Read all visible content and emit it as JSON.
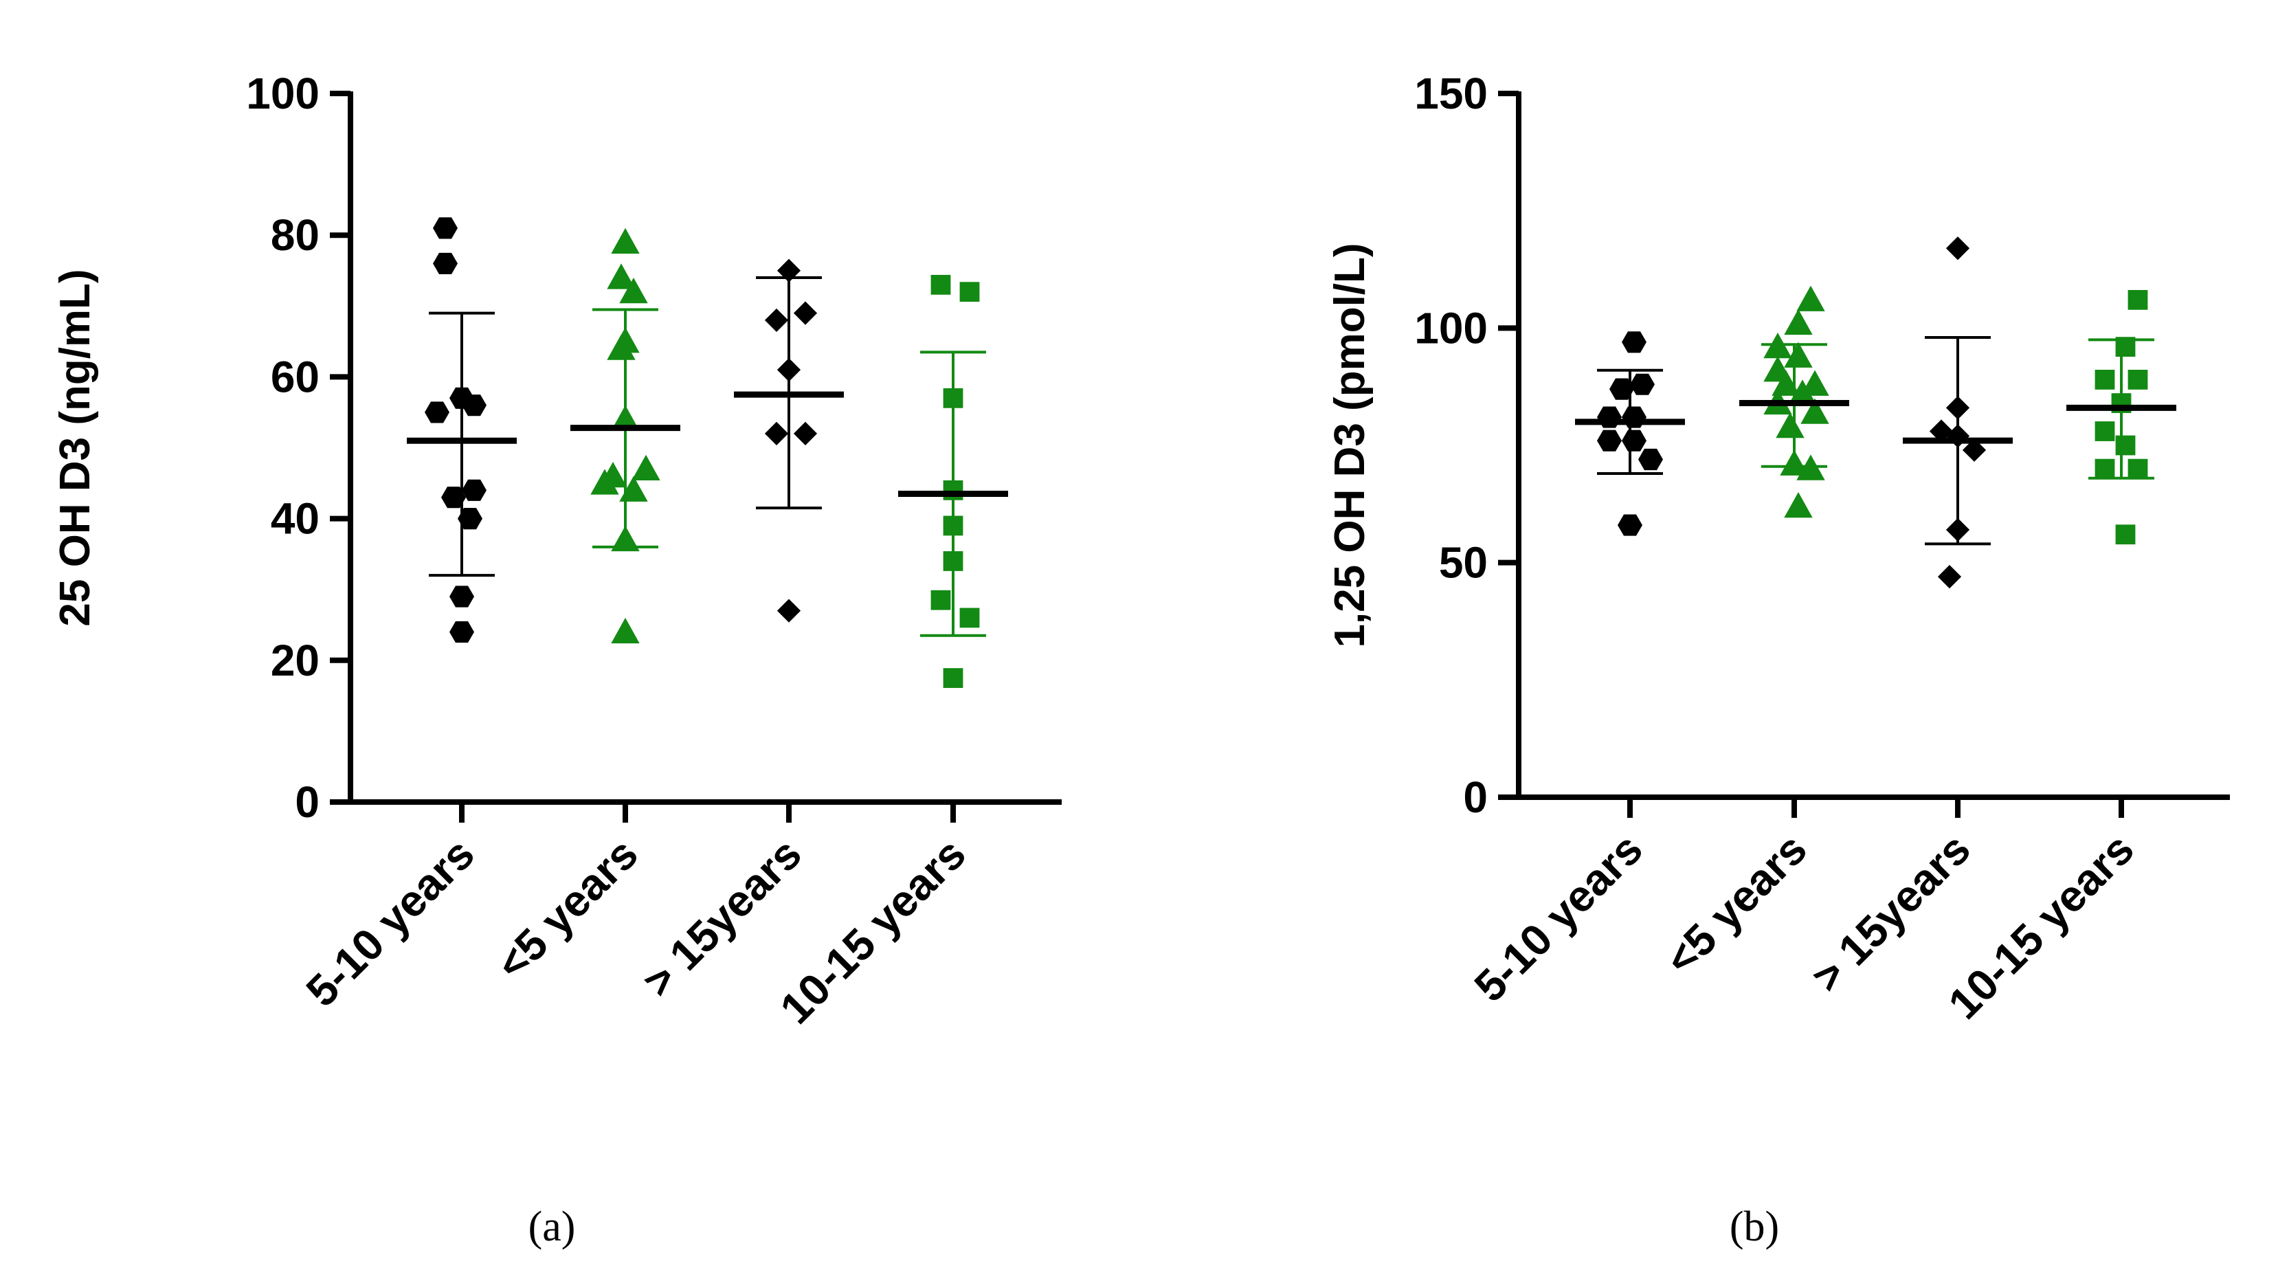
{
  "chart_data": [
    {
      "type": "scatter",
      "panel": "(a)",
      "ylabel": "25 OH D3 (ng/mL)",
      "ylim": [
        0,
        100
      ],
      "yticks": [
        0,
        20,
        40,
        60,
        80,
        100
      ],
      "categories": [
        "5-10 years",
        "<5 years",
        "> 15years",
        "10-15 years"
      ],
      "groups": [
        {
          "category": "5-10 years",
          "marker": "hexagon",
          "color": "#000000",
          "points": [
            [
              -0.2,
              81
            ],
            [
              -0.2,
              76
            ],
            [
              -0.3,
              55
            ],
            [
              0.15,
              56
            ],
            [
              0,
              57
            ],
            [
              -0.1,
              43
            ],
            [
              0.15,
              44
            ],
            [
              0.1,
              40
            ],
            [
              0,
              29
            ],
            [
              0,
              24
            ]
          ],
          "mean": 51,
          "sd_low": 32,
          "sd_high": 69
        },
        {
          "category": "<5 years",
          "marker": "triangle",
          "color": "#138a13",
          "points": [
            [
              0,
              79
            ],
            [
              -0.05,
              74
            ],
            [
              0.1,
              72
            ],
            [
              0,
              65
            ],
            [
              -0.05,
              64
            ],
            [
              0,
              54
            ],
            [
              -0.15,
              46
            ],
            [
              -0.25,
              45
            ],
            [
              0.1,
              44
            ],
            [
              0.25,
              47
            ],
            [
              0,
              37
            ],
            [
              0,
              24
            ]
          ],
          "mean": 52.8,
          "sd_low": 36,
          "sd_high": 69.5
        },
        {
          "category": "> 15years",
          "marker": "diamond",
          "color": "#000000",
          "points": [
            [
              0,
              75
            ],
            [
              -0.15,
              68
            ],
            [
              0.2,
              69
            ],
            [
              0,
              61
            ],
            [
              -0.15,
              52
            ],
            [
              0.2,
              52
            ],
            [
              0,
              27
            ]
          ],
          "mean": 57.5,
          "sd_low": 41.5,
          "sd_high": 74
        },
        {
          "category": "10-15 years",
          "marker": "square",
          "color": "#138a13",
          "points": [
            [
              -0.15,
              73
            ],
            [
              0.2,
              72
            ],
            [
              0,
              57
            ],
            [
              0,
              44
            ],
            [
              0,
              39
            ],
            [
              0,
              34
            ],
            [
              -0.15,
              28.5
            ],
            [
              0.2,
              26
            ],
            [
              0,
              17.5
            ]
          ],
          "mean": 43.5,
          "sd_low": 23.5,
          "sd_high": 63.5
        }
      ]
    },
    {
      "type": "scatter",
      "panel": "(b)",
      "ylabel": "1,25 OH D3 (pmol/L)",
      "ylim": [
        0,
        150
      ],
      "yticks": [
        0,
        50,
        100,
        150
      ],
      "categories": [
        "5-10 years",
        "<5 years",
        "> 15years",
        "10-15 years"
      ],
      "groups": [
        {
          "category": "5-10 years",
          "marker": "hexagon",
          "color": "#000000",
          "points": [
            [
              0.05,
              97
            ],
            [
              -0.1,
              87
            ],
            [
              0.15,
              88
            ],
            [
              -0.25,
              81
            ],
            [
              0.05,
              81
            ],
            [
              -0.25,
              76
            ],
            [
              0.05,
              76
            ],
            [
              0.25,
              72
            ],
            [
              0,
              58
            ]
          ],
          "mean": 80,
          "sd_low": 69,
          "sd_high": 91
        },
        {
          "category": "<5 years",
          "marker": "triangle",
          "color": "#138a13",
          "points": [
            [
              0.2,
              106
            ],
            [
              0.05,
              101
            ],
            [
              -0.2,
              96
            ],
            [
              0.05,
              94
            ],
            [
              -0.2,
              91
            ],
            [
              0.25,
              88
            ],
            [
              -0.1,
              88
            ],
            [
              0.1,
              86
            ],
            [
              -0.2,
              84
            ],
            [
              0.25,
              82
            ],
            [
              -0.05,
              79
            ],
            [
              0,
              71
            ],
            [
              0.2,
              70
            ],
            [
              0.05,
              62
            ]
          ],
          "mean": 84,
          "sd_low": 70.5,
          "sd_high": 96.5
        },
        {
          "category": "> 15years",
          "marker": "diamond",
          "color": "#000000",
          "points": [
            [
              0,
              117
            ],
            [
              0,
              83
            ],
            [
              -0.2,
              78
            ],
            [
              0,
              77
            ],
            [
              0.2,
              74
            ],
            [
              0,
              57
            ],
            [
              -0.1,
              47
            ]
          ],
          "mean": 76,
          "sd_low": 54,
          "sd_high": 98
        },
        {
          "category": "10-15 years",
          "marker": "square",
          "color": "#138a13",
          "points": [
            [
              0.2,
              106
            ],
            [
              0.05,
              96
            ],
            [
              -0.2,
              89
            ],
            [
              0.2,
              89
            ],
            [
              0,
              84
            ],
            [
              -0.2,
              78
            ],
            [
              0.05,
              75
            ],
            [
              -0.2,
              70
            ],
            [
              0.2,
              70
            ],
            [
              0.05,
              56
            ]
          ],
          "mean": 83,
          "sd_low": 68,
          "sd_high": 97.5
        }
      ]
    }
  ]
}
